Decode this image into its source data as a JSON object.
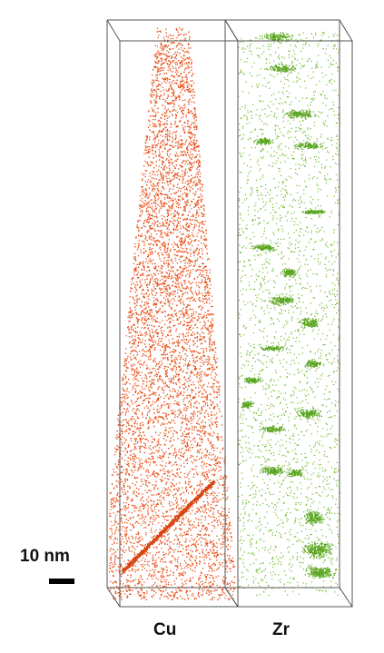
{
  "figure": {
    "panels": [
      {
        "element": "Cu",
        "label": "Cu",
        "atom_color": "#e8531c"
      },
      {
        "element": "Zr",
        "label": "Zr",
        "atom_color": "#6dbb2a"
      }
    ],
    "scale_bar": {
      "label": "10 nm",
      "length_nm": 10
    },
    "box_edge_color": "#555555"
  }
}
